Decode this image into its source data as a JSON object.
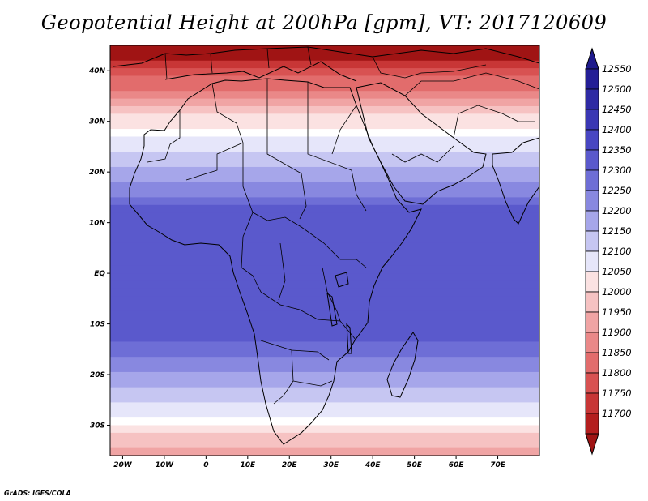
{
  "title": "Geopotential Height at 200hPa [gpm], VT: 2017120609",
  "credit": "GrADS: IGES/COLA",
  "map": {
    "projection": "latlon",
    "lon_range": [
      -23,
      80
    ],
    "lat_range": [
      -36,
      45
    ],
    "lat_ticks": [
      {
        "value": 40,
        "label": "40N"
      },
      {
        "value": 30,
        "label": "30N"
      },
      {
        "value": 20,
        "label": "20N"
      },
      {
        "value": 10,
        "label": "10N"
      },
      {
        "value": 0,
        "label": "EQ"
      },
      {
        "value": -10,
        "label": "10S"
      },
      {
        "value": -20,
        "label": "20S"
      },
      {
        "value": -30,
        "label": "30S"
      }
    ],
    "lon_ticks": [
      {
        "value": -20,
        "label": "20W"
      },
      {
        "value": -10,
        "label": "10W"
      },
      {
        "value": 0,
        "label": "0"
      },
      {
        "value": 10,
        "label": "10E"
      },
      {
        "value": 20,
        "label": "20E"
      },
      {
        "value": 30,
        "label": "30E"
      },
      {
        "value": 40,
        "label": "40E"
      },
      {
        "value": 50,
        "label": "50E"
      },
      {
        "value": 60,
        "label": "60E"
      },
      {
        "value": 70,
        "label": "70E"
      }
    ]
  },
  "colorbar": {
    "min_arrow_color": "#a01414",
    "max_arrow_color": "#1e1a8c",
    "levels": [
      {
        "label": "12550",
        "color": "#241e96"
      },
      {
        "label": "12500",
        "color": "#2e2aa4"
      },
      {
        "label": "12450",
        "color": "#3a37b4"
      },
      {
        "label": "12400",
        "color": "#4846c2"
      },
      {
        "label": "12350",
        "color": "#5a59cc"
      },
      {
        "label": "12300",
        "color": "#6e6ed6"
      },
      {
        "label": "12250",
        "color": "#8888e0"
      },
      {
        "label": "12200",
        "color": "#a6a6ea"
      },
      {
        "label": "12150",
        "color": "#c6c6f2"
      },
      {
        "label": "12100",
        "color": "#e6e6fa"
      },
      {
        "label": "12050",
        "color": "#fbe2e2"
      },
      {
        "label": "12000",
        "color": "#f6c2c2"
      },
      {
        "label": "11950",
        "color": "#f0a4a4"
      },
      {
        "label": "11900",
        "color": "#ea8888"
      },
      {
        "label": "11850",
        "color": "#e26c6c"
      },
      {
        "label": "11800",
        "color": "#d85252"
      },
      {
        "label": "11750",
        "color": "#c83636"
      },
      {
        "label": "11700",
        "color": "#b41e1e"
      }
    ]
  },
  "field_bands": [
    {
      "min_height": 12450,
      "color": "#4846c2"
    },
    {
      "min_height": 12400,
      "color": "#5a59cc"
    },
    {
      "min_height": 12350,
      "color": "#6e6ed6"
    },
    {
      "min_height": 12300,
      "color": "#8888e0"
    },
    {
      "min_height": 12250,
      "color": "#a6a6ea"
    },
    {
      "min_height": 12200,
      "color": "#c6c6f2"
    },
    {
      "min_height": 12150,
      "color": "#e6e6fa"
    },
    {
      "min_height": 12100,
      "color": "#ffffff"
    },
    {
      "min_height": 12050,
      "color": "#fbe2e2"
    },
    {
      "min_height": 12000,
      "color": "#f6c2c2"
    },
    {
      "min_height": 11950,
      "color": "#f0a4a4"
    },
    {
      "min_height": 11900,
      "color": "#ea8888"
    },
    {
      "min_height": 11850,
      "color": "#e26c6c"
    },
    {
      "min_height": 11800,
      "color": "#d85252"
    },
    {
      "min_height": 11750,
      "color": "#c83636"
    },
    {
      "min_height": 0,
      "color": "#a01414"
    }
  ],
  "coastline_color": "#000000"
}
